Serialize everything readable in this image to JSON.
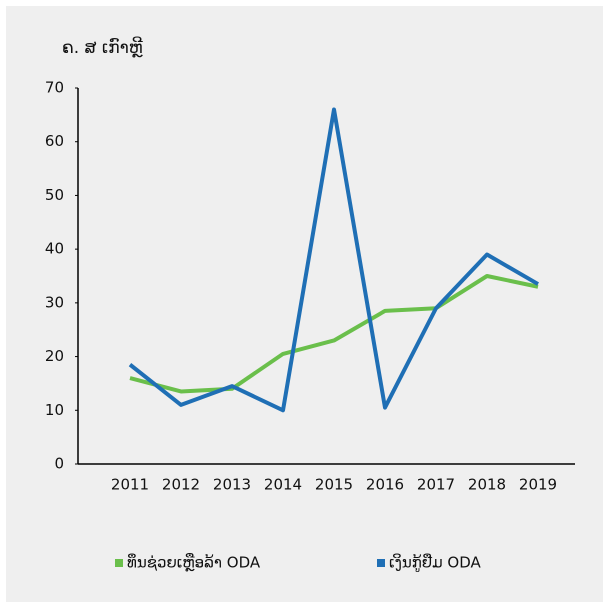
{
  "chart_data": {
    "type": "line",
    "y_label": "ຄ. ສ ເກົາຫຼີ",
    "categories": [
      "2011",
      "2012",
      "2013",
      "2014",
      "2015",
      "2016",
      "2017",
      "2018",
      "2019"
    ],
    "series": [
      {
        "name": "ທຶນຊ່ວຍເຫຼືອລ້າ ODA",
        "color": "#6abf4b",
        "values": [
          16,
          13.5,
          14,
          20.5,
          23,
          28.5,
          29,
          35,
          33
        ]
      },
      {
        "name": "ເງິນກູ້ຢືມ ODA",
        "color": "#1f6fb5",
        "values": [
          18.5,
          11,
          14.5,
          10,
          66,
          10.5,
          29,
          39,
          33.5
        ]
      }
    ],
    "ylim": [
      0,
      70
    ],
    "yticks": [
      0,
      10,
      20,
      30,
      40,
      50,
      60,
      70
    ]
  }
}
